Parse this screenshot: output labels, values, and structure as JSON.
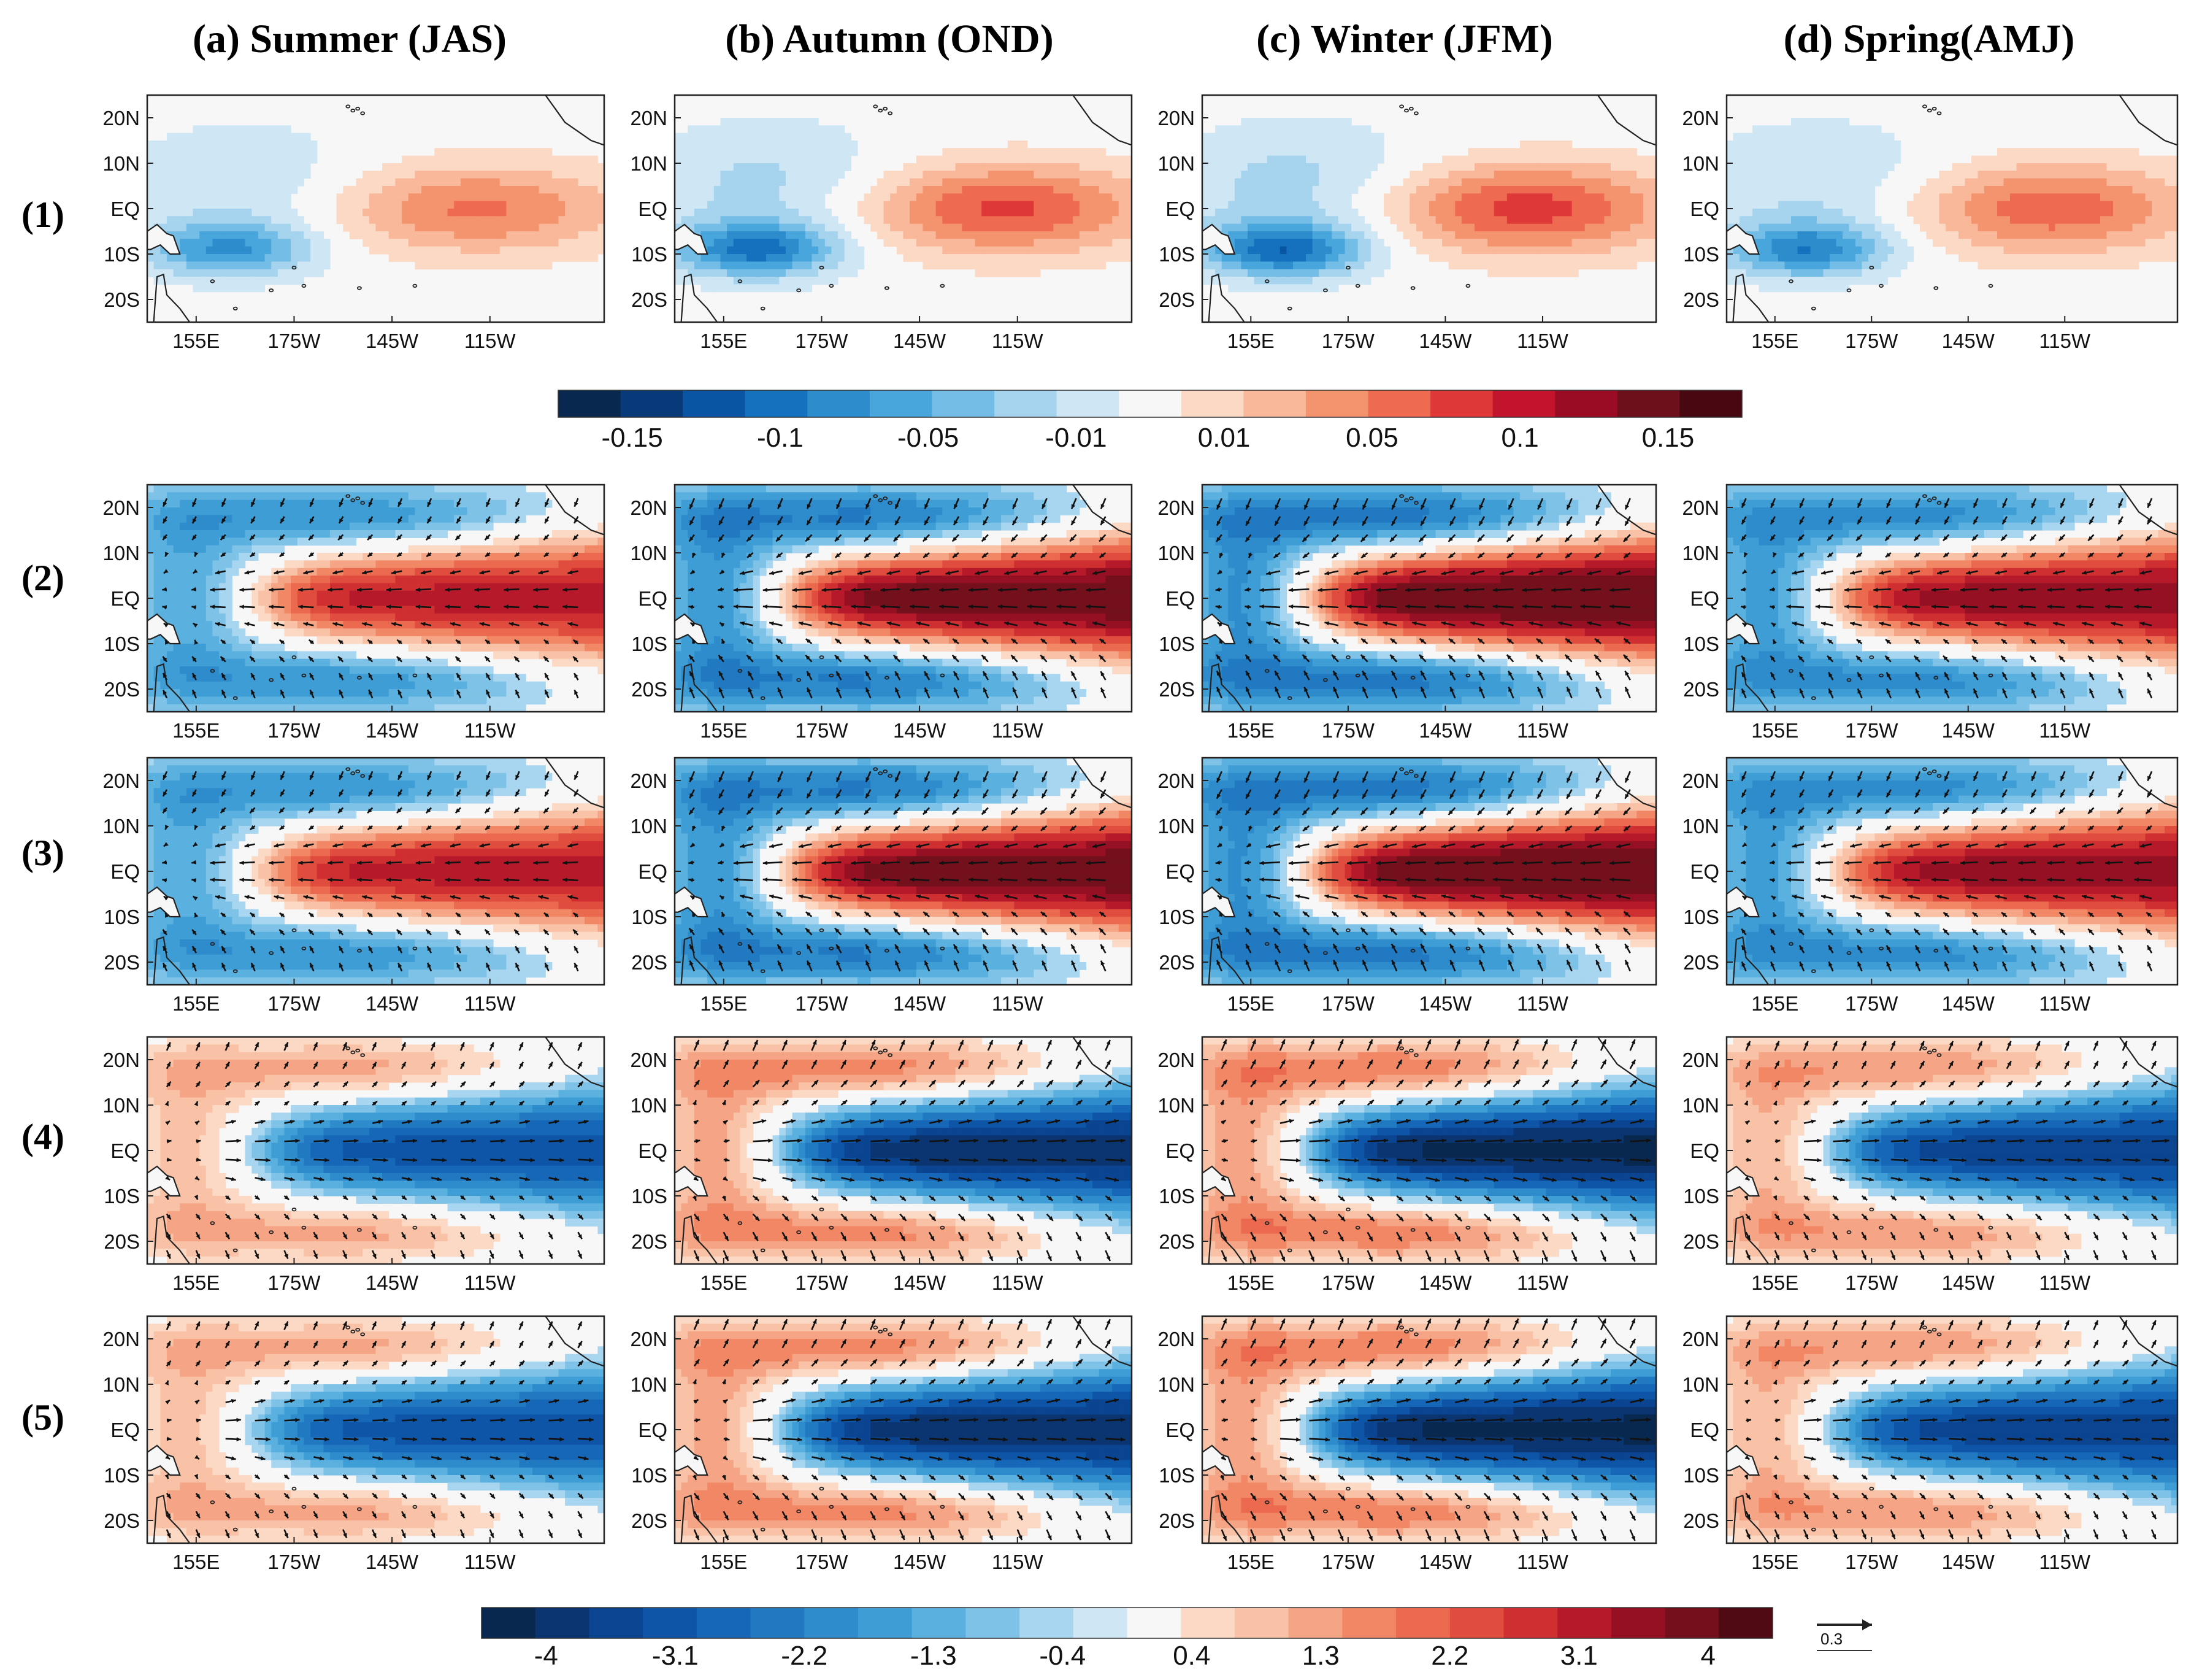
{
  "chart_data": {
    "type": "heatmap",
    "description_level": "multi-panel map figure",
    "columns": [
      {
        "id": "a",
        "title": "(a) Summer (JAS)"
      },
      {
        "id": "b",
        "title": "(b) Autumn (OND)"
      },
      {
        "id": "c",
        "title": "(c) Winter (JFM)"
      },
      {
        "id": "d",
        "title": "(d) Spring(AMJ)"
      }
    ],
    "rows": [
      {
        "label": "(1)",
        "sign": 1,
        "amp": 0.7,
        "vectors": false,
        "colorbar": "top"
      },
      {
        "label": "(2)",
        "sign": 1,
        "amp": 1.0,
        "vectors": true,
        "colorbar": "bottom"
      },
      {
        "label": "(3)",
        "sign": 1,
        "amp": 1.0,
        "vectors": true,
        "colorbar": "bottom"
      },
      {
        "label": "(4)",
        "sign": -1,
        "amp": 0.9,
        "vectors": true,
        "colorbar": "bottom"
      },
      {
        "label": "(5)",
        "sign": -1,
        "amp": 0.9,
        "vectors": true,
        "colorbar": "bottom"
      }
    ],
    "season_strength": [
      0.75,
      0.95,
      1.0,
      0.85
    ],
    "lon_ticks": [
      "155E",
      "175W",
      "145W",
      "115W"
    ],
    "lat_ticks": [
      "20N",
      "10N",
      "EQ",
      "10S",
      "20S"
    ],
    "lon_range": [
      140,
      280
    ],
    "lat_range": [
      -25,
      25
    ],
    "colorbar_top": {
      "tick_labels": [
        "-0.15",
        "-0.1",
        "-0.05",
        "-0.01",
        "0.01",
        "0.05",
        "0.1",
        "0.15"
      ],
      "colors": [
        "#08284f",
        "#083a7a",
        "#0a55a3",
        "#1570bd",
        "#2c8ccc",
        "#48a6dc",
        "#74bde6",
        "#a6d3ee",
        "#cfe6f5",
        "#f7f7f7",
        "#fcd9c5",
        "#f8b899",
        "#f4946f",
        "#ee6a50",
        "#de3938",
        "#c2152d",
        "#9a0b24",
        "#6e0f1c",
        "#470812"
      ]
    },
    "colorbar_bottom": {
      "tick_labels": [
        "-4",
        "-3.1",
        "-2.2",
        "-1.3",
        "-0.4",
        "0.4",
        "1.3",
        "2.2",
        "3.1",
        "4"
      ],
      "colors": [
        "#08284f",
        "#0a3570",
        "#0b4490",
        "#0e55a8",
        "#1767b8",
        "#2179c2",
        "#2e8bcc",
        "#3f9dd6",
        "#5ab0df",
        "#7fc2e7",
        "#a8d5ef",
        "#cfe6f5",
        "#f7f7f7",
        "#fcd9c5",
        "#f9c2a6",
        "#f6a486",
        "#f28766",
        "#eb6a4f",
        "#e04c3d",
        "#cf2f31",
        "#b61a2a",
        "#961023",
        "#73101c",
        "#4f0a14"
      ]
    },
    "reference_vector": {
      "label": "0.3"
    }
  }
}
